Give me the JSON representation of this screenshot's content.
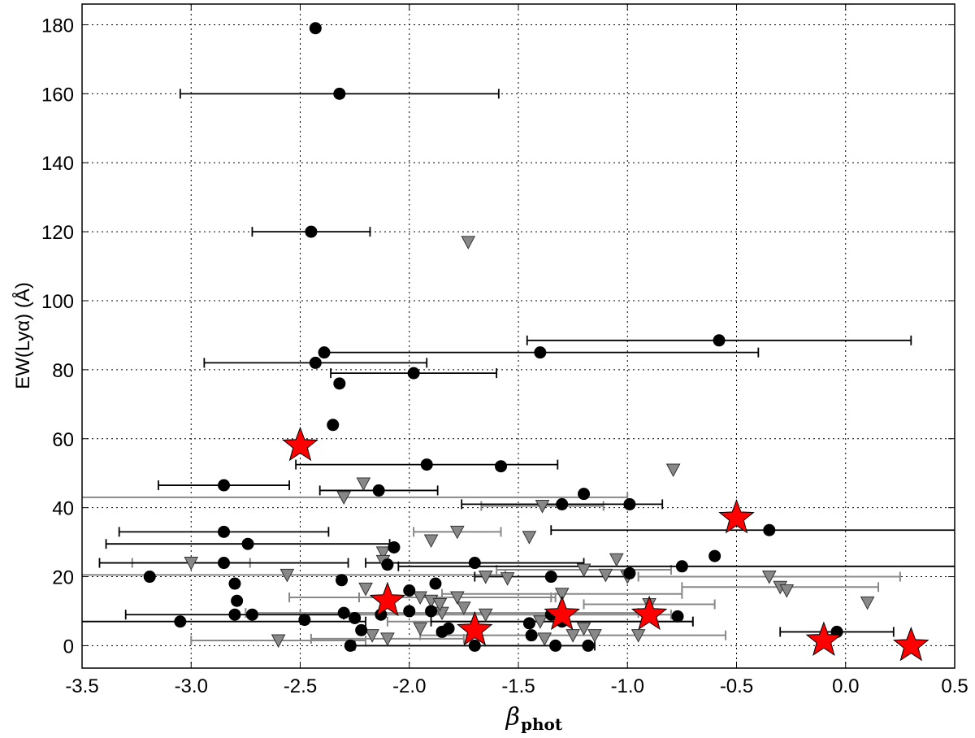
{
  "chart_data": {
    "type": "scatter",
    "y_label": "EW(Lyα) (Å)",
    "x_label": "β",
    "x_label_sub": "phot",
    "xlim": [
      -3.5,
      0.5
    ],
    "xticks": [
      -3.5,
      {
        "value": -3.0,
        "label": "-3.0"
      },
      -2.5,
      {
        "value": -2.0,
        "label": "-2.0"
      },
      -1.5,
      {
        "value": -1.0,
        "label": "-1.0"
      },
      -0.5,
      {
        "value": 0.0,
        "label": "0.0"
      },
      0.5
    ],
    "ylim": [
      -6.5,
      186
    ],
    "yticks": [
      0,
      20,
      40,
      60,
      80,
      100,
      120,
      140,
      160,
      180
    ],
    "grid": true,
    "series": [
      {
        "marker": "triangle-down",
        "color": "#888888",
        "x": [
          -1.73,
          -0.79,
          -2.21,
          -2.3,
          -1.39,
          -1.45,
          -1.78,
          -1.9,
          -2.12,
          -2.12,
          -3.0,
          -2.56,
          -1.65,
          -1.55,
          -1.2,
          -1.05,
          -1.1,
          -1.0,
          -0.35,
          -0.3,
          -0.27,
          0.1,
          -2.2,
          -1.95,
          -1.78,
          -1.9,
          -1.3,
          -1.85,
          -1.75,
          -1.4,
          -2.6,
          -2.17,
          -2.1,
          -1.95,
          -1.65,
          -1.2,
          -1.15,
          -1.25,
          -1.38,
          -0.95,
          -1.86,
          -0.9
        ],
        "values": [
          117,
          51,
          47,
          43,
          40.5,
          31.5,
          33,
          30.5,
          27,
          24.5,
          24,
          20.5,
          20,
          19.5,
          22,
          25,
          20.5,
          20,
          20,
          17,
          16,
          12.5,
          16.5,
          14,
          14,
          13,
          15,
          9.5,
          11,
          7,
          1.5,
          3,
          2,
          5,
          9,
          5,
          3,
          3,
          2,
          3,
          12,
          12
        ],
        "xerr": [
          null,
          null,
          null,
          1.3,
          0.28,
          null,
          0.2,
          null,
          null,
          null,
          0.27,
          1.0,
          null,
          null,
          0.4,
          null,
          null,
          null,
          0.6,
          0.45,
          null,
          null,
          null,
          0.6,
          0.45,
          null,
          0.55,
          0.9,
          null,
          0.7,
          0.4,
          null,
          0.35,
          null,
          0.85,
          null,
          null,
          0.7,
          null,
          null,
          null,
          0.3
        ]
      },
      {
        "marker": "circle",
        "color": "#000000",
        "x": [
          -2.43,
          -2.32,
          -2.45,
          -0.58,
          -1.4,
          -2.39,
          -2.43,
          -1.98,
          -2.32,
          -2.35,
          -1.92,
          -1.58,
          -2.85,
          -2.14,
          -1.2,
          -1.3,
          -0.99,
          -0.35,
          -2.85,
          -2.74,
          -2.07,
          -0.6,
          -2.85,
          -1.7,
          -2.1,
          -0.75,
          -3.19,
          -2.8,
          -2.31,
          -1.88,
          -1.35,
          -0.99,
          -2.79,
          -2.0,
          -2.8,
          -3.05,
          -2.72,
          -2.48,
          -2.3,
          -2.25,
          -2.13,
          -2.0,
          -1.9,
          -1.82,
          -1.85,
          -1.44,
          -1.45,
          -1.35,
          -1.3,
          -1.18,
          -1.33,
          -1.7,
          -2.27,
          -2.22,
          -0.77,
          -0.04
        ],
        "values": [
          179,
          160,
          120,
          88.5,
          85,
          85,
          82,
          79,
          76,
          64,
          52.5,
          52,
          46.5,
          45,
          44,
          41,
          41,
          33.5,
          33,
          29.5,
          28.5,
          26,
          24,
          24,
          23.5,
          23,
          20,
          18,
          19,
          18,
          20,
          21,
          13,
          16,
          9,
          7,
          9,
          7.5,
          9.5,
          8,
          9,
          10,
          10,
          5,
          4,
          3,
          6.5,
          9,
          7,
          0,
          0,
          0,
          0,
          4.5,
          8.5,
          4
        ],
        "xerr": [
          null,
          0.73,
          0.27,
          0.88,
          1.0,
          null,
          0.51,
          0.38,
          null,
          null,
          0.6,
          null,
          0.3,
          0.27,
          null,
          0.46,
          null,
          1.0,
          0.48,
          0.65,
          null,
          null,
          0.57,
          0.5,
          null,
          1.3,
          null,
          null,
          null,
          null,
          0.35,
          null,
          null,
          null,
          0.5,
          0.85,
          null,
          null,
          null,
          null,
          null,
          null,
          null,
          null,
          null,
          null,
          null,
          null,
          0.6,
          null,
          null,
          0.55,
          null,
          null,
          null,
          0.26
        ]
      },
      {
        "marker": "star",
        "color": "#ff0000",
        "x": [
          -2.5,
          -0.5,
          -2.1,
          -1.3,
          -0.9,
          -1.7,
          -0.1,
          0.3
        ],
        "values": [
          58,
          37,
          13,
          9,
          9,
          4.5,
          1.5,
          0
        ]
      }
    ]
  }
}
